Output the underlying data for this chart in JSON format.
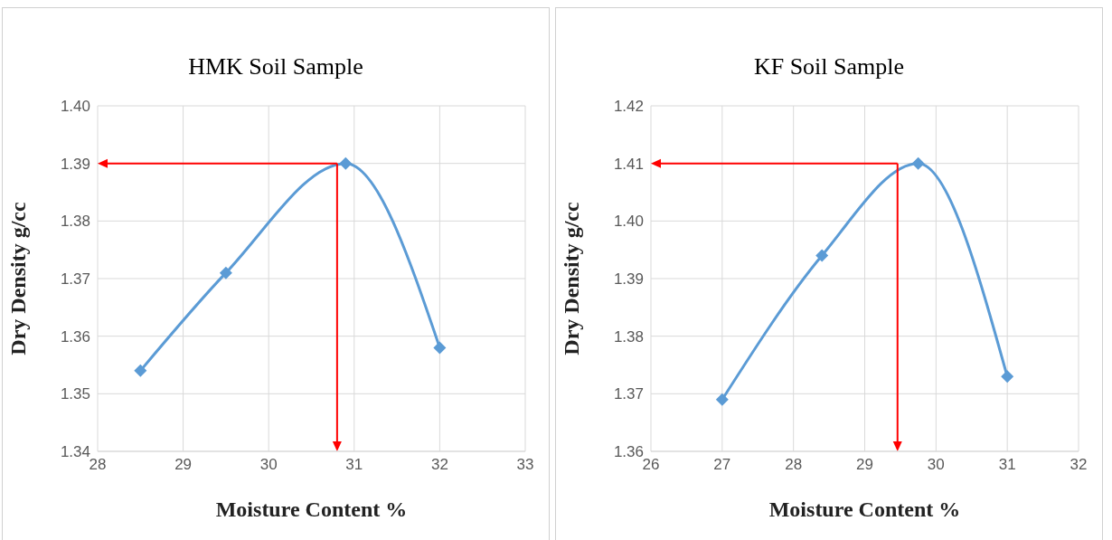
{
  "chart_data": [
    {
      "type": "line",
      "title": "HMK Soil Sample",
      "xlabel": "Moisture Content %",
      "ylabel": "Dry Density g/cc",
      "x": [
        28.5,
        29.5,
        30.9,
        32.0
      ],
      "series": [
        {
          "color": "#5b9bd5",
          "values": [
            1.354,
            1.371,
            1.39,
            1.358
          ]
        }
      ],
      "xlim": [
        28,
        33
      ],
      "xticks": [
        28,
        29,
        30,
        31,
        32,
        33
      ],
      "ylim": [
        1.34,
        1.4
      ],
      "yticks": [
        {
          "value": 1.34,
          "label": "1.34"
        },
        {
          "value": 1.35,
          "label": "1.35"
        },
        {
          "value": 1.36,
          "label": "1.36"
        },
        {
          "value": 1.37,
          "label": "1.37"
        },
        {
          "value": 1.38,
          "label": "1.38"
        },
        {
          "value": 1.39,
          "label": "1.39"
        },
        {
          "value": 1.4,
          "label": "1.40"
        }
      ],
      "grid": true,
      "legend": false,
      "marker": "diamond",
      "line_style": "solid",
      "ref_lines": [
        {
          "axis": "y",
          "value": 1.39,
          "color": "#ff0000"
        },
        {
          "axis": "x",
          "value": 30.8,
          "color": "#ff0000"
        }
      ]
    },
    {
      "type": "line",
      "title": "KF Soil Sample",
      "xlabel": "Moisture Content %",
      "ylabel": "Dry Density g/cc",
      "x": [
        27.0,
        28.4,
        29.75,
        31.0
      ],
      "series": [
        {
          "color": "#5b9bd5",
          "values": [
            1.369,
            1.394,
            1.41,
            1.373
          ]
        }
      ],
      "xlim": [
        26,
        32
      ],
      "xticks": [
        26,
        27,
        28,
        29,
        30,
        31,
        32
      ],
      "ylim": [
        1.36,
        1.42
      ],
      "yticks": [
        {
          "value": 1.36,
          "label": "1.36"
        },
        {
          "value": 1.37,
          "label": "1.37"
        },
        {
          "value": 1.38,
          "label": "1.38"
        },
        {
          "value": 1.39,
          "label": "1.39"
        },
        {
          "value": 1.4,
          "label": "1.40"
        },
        {
          "value": 1.41,
          "label": "1.41"
        },
        {
          "value": 1.42,
          "label": "1.42"
        }
      ],
      "grid": true,
      "legend": false,
      "marker": "diamond",
      "line_style": "solid",
      "ref_lines": [
        {
          "axis": "y",
          "value": 1.41,
          "color": "#ff0000"
        },
        {
          "axis": "x",
          "value": 29.46,
          "color": "#ff0000"
        }
      ]
    }
  ]
}
